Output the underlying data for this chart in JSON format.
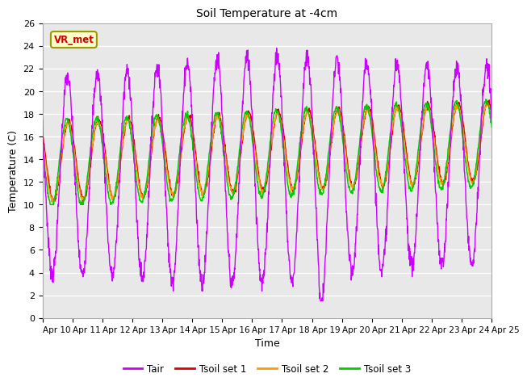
{
  "title": "Soil Temperature at -4cm",
  "xlabel": "Time",
  "ylabel": "Temperature (C)",
  "ylim": [
    0,
    26
  ],
  "xlim_hours": 360,
  "plot_bg_color": "#e8e8e8",
  "fig_bg_color": "#ffffff",
  "grid_color": "#ffffff",
  "line_colors": {
    "Tair": "#cc00ff",
    "Tsoil1": "#dd0000",
    "Tsoil2": "#ff9900",
    "Tsoil3": "#00cc00"
  },
  "x_tick_labels": [
    "Apr 10",
    "Apr 11",
    "Apr 12",
    "Apr 13",
    "Apr 14",
    "Apr 15",
    "Apr 16",
    "Apr 17",
    "Apr 18",
    "Apr 19",
    "Apr 20",
    "Apr 21",
    "Apr 22",
    "Apr 23",
    "Apr 24",
    "Apr 25"
  ],
  "annotation_text": "VR_met",
  "annotation_color": "#cc0000",
  "annotation_bg": "#ffffcc",
  "annotation_border": "#999900"
}
